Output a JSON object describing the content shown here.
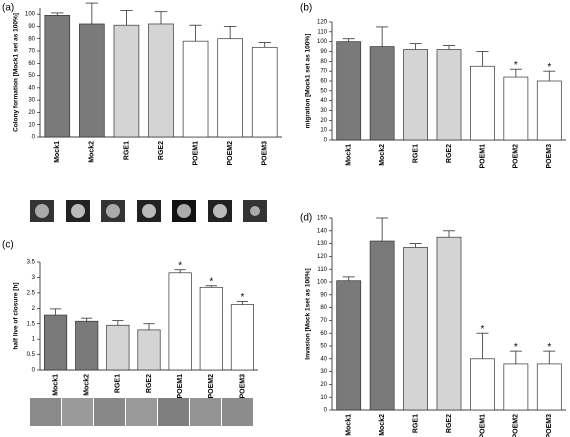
{
  "chart_data": [
    {
      "type": "bar",
      "title": "(a)",
      "ylabel": "Colony formation [Mock1 set as 100%]",
      "categories": [
        "Mock1",
        "Mock2",
        "RGE1",
        "RGE2",
        "POEM1",
        "POEM2",
        "POEM3"
      ],
      "values": [
        99,
        92,
        91,
        92,
        78,
        80,
        73
      ],
      "errors": [
        2,
        17,
        12,
        10,
        13,
        10,
        4
      ],
      "colors": [
        "#7a7a7a",
        "#7a7a7a",
        "#d4d4d4",
        "#d4d4d4",
        "#ffffff",
        "#ffffff",
        "#ffffff"
      ],
      "ylim": [
        0,
        105
      ],
      "yticks": [
        0,
        10,
        20,
        30,
        40,
        50,
        60,
        70,
        80,
        90,
        100
      ],
      "annotations": []
    },
    {
      "type": "bar",
      "title": "(b)",
      "ylabel": "migration [Mock1 set as 100%]",
      "categories": [
        "Mock1",
        "Mock2",
        "RGE1",
        "RGE2",
        "POEM1",
        "POEM2",
        "POEM3"
      ],
      "values": [
        100,
        95,
        92,
        92,
        75,
        64,
        60
      ],
      "errors": [
        3,
        20,
        6,
        4,
        15,
        8,
        10
      ],
      "colors": [
        "#7a7a7a",
        "#7a7a7a",
        "#d4d4d4",
        "#d4d4d4",
        "#ffffff",
        "#ffffff",
        "#ffffff"
      ],
      "ylim": [
        0,
        120
      ],
      "yticks": [
        0,
        10,
        20,
        30,
        40,
        50,
        60,
        70,
        80,
        90,
        100,
        110,
        120
      ],
      "annotations": [
        {
          "text": "*",
          "category": "POEM2"
        },
        {
          "text": "*",
          "category": "POEM3"
        }
      ]
    },
    {
      "type": "bar",
      "title": "(c)",
      "ylabel": "half live of closure [h]",
      "categories": [
        "Mock1",
        "Mock2",
        "RGE1",
        "RGE2",
        "POEM1",
        "POEM2",
        "POEM3"
      ],
      "values": [
        1.78,
        1.58,
        1.45,
        1.3,
        3.15,
        2.68,
        2.12
      ],
      "errors": [
        0.2,
        0.1,
        0.15,
        0.2,
        0.1,
        0.05,
        0.1
      ],
      "colors": [
        "#7a7a7a",
        "#7a7a7a",
        "#d4d4d4",
        "#d4d4d4",
        "#ffffff",
        "#ffffff",
        "#ffffff"
      ],
      "ylim": [
        0,
        3.5
      ],
      "yticks": [
        0,
        0.5,
        1,
        1.5,
        2,
        2.5,
        3,
        3.5
      ],
      "annotations": [
        {
          "text": "*",
          "category": "POEM1"
        },
        {
          "text": "*",
          "category": "POEM2"
        },
        {
          "text": "*",
          "category": "POEM3"
        }
      ]
    },
    {
      "type": "bar",
      "title": "(d)",
      "ylabel": "Invasion [Mock 1set as 100%]",
      "categories": [
        "Mock1",
        "Mock2",
        "RGE1",
        "RGE2",
        "POEM1",
        "POEM2",
        "POEM3"
      ],
      "values": [
        101,
        132,
        127,
        135,
        40,
        36,
        36
      ],
      "errors": [
        3,
        18,
        3,
        5,
        20,
        10,
        10
      ],
      "colors": [
        "#7a7a7a",
        "#7a7a7a",
        "#d4d4d4",
        "#d4d4d4",
        "#ffffff",
        "#ffffff",
        "#ffffff"
      ],
      "ylim": [
        0,
        150
      ],
      "yticks": [
        0,
        10,
        20,
        30,
        40,
        50,
        60,
        70,
        80,
        90,
        100,
        110,
        120,
        130,
        140,
        150
      ],
      "annotations": [
        {
          "text": "*",
          "category": "POEM1"
        },
        {
          "text": "*",
          "category": "POEM2"
        },
        {
          "text": "*",
          "category": "POEM3"
        }
      ]
    }
  ]
}
